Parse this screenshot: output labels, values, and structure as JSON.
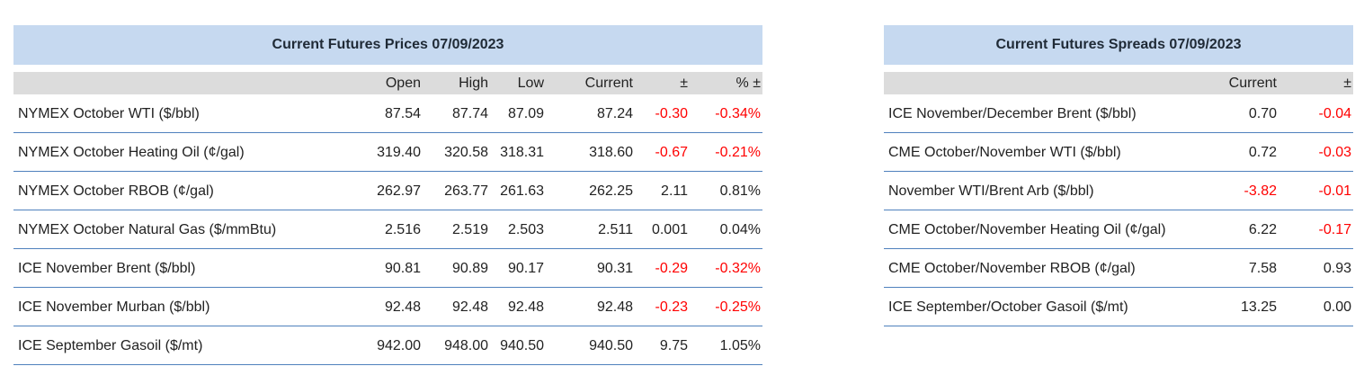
{
  "tables": [
    {
      "title": "Current Futures Prices 07/09/2023",
      "columns": [
        "Open",
        "High",
        "Low",
        "Current",
        "±",
        "% ±"
      ],
      "rows": [
        [
          "NYMEX October WTI ($/bbl)",
          "87.54",
          "87.74",
          "87.09",
          "87.24",
          "-0.30",
          "-0.34%"
        ],
        [
          "NYMEX October Heating Oil (¢/gal)",
          "319.40",
          "320.58",
          "318.31",
          "318.60",
          "-0.67",
          "-0.21%"
        ],
        [
          "NYMEX October RBOB (¢/gal)",
          "262.97",
          "263.77",
          "261.63",
          "262.25",
          "2.11",
          "0.81%"
        ],
        [
          "NYMEX October Natural Gas ($/mmBtu)",
          "2.516",
          "2.519",
          "2.503",
          "2.511",
          "0.001",
          "0.04%"
        ],
        [
          "ICE November Brent ($/bbl)",
          "90.81",
          "90.89",
          "90.17",
          "90.31",
          "-0.29",
          "-0.32%"
        ],
        [
          "ICE November Murban ($/bbl)",
          "92.48",
          "92.48",
          "92.48",
          "92.48",
          "-0.23",
          "-0.25%"
        ],
        [
          "ICE September Gasoil ($/mt)",
          "942.00",
          "948.00",
          "940.50",
          "940.50",
          "9.75",
          "1.05%"
        ]
      ]
    },
    {
      "title": "Current Futures Spreads 07/09/2023",
      "columns": [
        "Current",
        "±"
      ],
      "rows": [
        [
          "ICE November/December Brent ($/bbl)",
          "0.70",
          "-0.04"
        ],
        [
          "CME October/November WTI ($/bbl)",
          "0.72",
          "-0.03"
        ],
        [
          "November WTI/Brent Arb ($/bbl)",
          "-3.82",
          "-0.01"
        ],
        [
          "CME October/November Heating Oil (¢/gal)",
          "6.22",
          "-0.17"
        ],
        [
          "CME October/November RBOB (¢/gal)",
          "7.58",
          "0.93"
        ],
        [
          "ICE September/October Gasoil ($/mt)",
          "13.25",
          "0.00"
        ]
      ]
    }
  ]
}
